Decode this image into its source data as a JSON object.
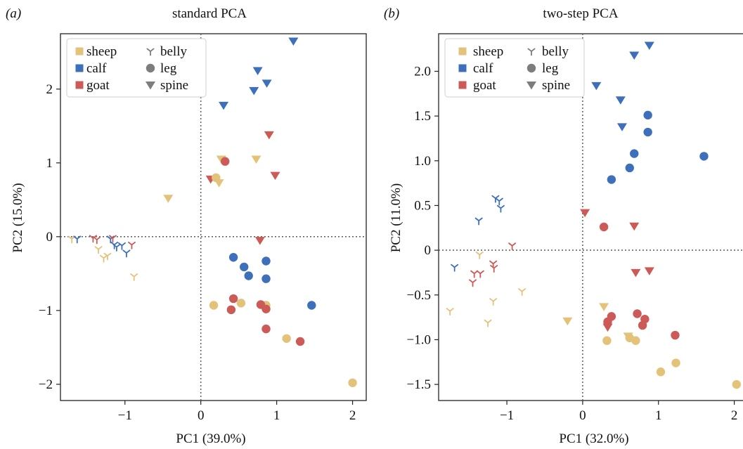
{
  "colors": {
    "sheep": "#e3c27a",
    "calf": "#3d6fba",
    "goat": "#cc5a57",
    "legend_marker": "#7d7d7d"
  },
  "legend": {
    "tissues": [
      "sheep",
      "calf",
      "goat"
    ],
    "parts": [
      "belly",
      "leg",
      "spine"
    ]
  },
  "chart_data": [
    {
      "panel_label": "(a)",
      "type": "scatter",
      "title": "standard PCA",
      "xlabel": "PC1 (39.0%)",
      "ylabel": "PC2 (15.0%)",
      "xlim": [
        -1.85,
        2.18
      ],
      "ylim": [
        -2.22,
        2.75
      ],
      "xticks": [
        -1,
        0,
        1,
        2
      ],
      "yticks": [
        -2,
        -1,
        0,
        1,
        2
      ],
      "xtick_labels": [
        "−1",
        "0",
        "1",
        "2"
      ],
      "ytick_labels": [
        "−2",
        "−1",
        "0",
        "1",
        "2"
      ],
      "reference_lines": [
        0,
        0
      ],
      "legend_position": "top-left",
      "points": [
        {
          "x": 1.22,
          "y": 2.65,
          "species": "calf",
          "part": "spine"
        },
        {
          "x": 0.75,
          "y": 2.25,
          "species": "calf",
          "part": "spine"
        },
        {
          "x": 0.87,
          "y": 2.08,
          "species": "calf",
          "part": "spine"
        },
        {
          "x": 0.7,
          "y": 1.98,
          "species": "calf",
          "part": "spine"
        },
        {
          "x": 0.3,
          "y": 1.78,
          "species": "calf",
          "part": "spine"
        },
        {
          "x": 0.9,
          "y": 1.38,
          "species": "goat",
          "part": "spine"
        },
        {
          "x": 0.27,
          "y": 1.05,
          "species": "sheep",
          "part": "spine"
        },
        {
          "x": 0.73,
          "y": 1.05,
          "species": "sheep",
          "part": "spine"
        },
        {
          "x": 0.98,
          "y": 0.83,
          "species": "goat",
          "part": "spine"
        },
        {
          "x": 0.13,
          "y": 0.78,
          "species": "goat",
          "part": "spine"
        },
        {
          "x": 0.24,
          "y": 0.73,
          "species": "sheep",
          "part": "spine"
        },
        {
          "x": -0.43,
          "y": 0.52,
          "species": "sheep",
          "part": "spine"
        },
        {
          "x": 0.78,
          "y": -0.05,
          "species": "goat",
          "part": "spine"
        },
        {
          "x": 0.32,
          "y": 1.02,
          "species": "goat",
          "part": "leg"
        },
        {
          "x": 0.2,
          "y": 0.8,
          "species": "sheep",
          "part": "leg"
        },
        {
          "x": 0.43,
          "y": -0.28,
          "species": "calf",
          "part": "leg"
        },
        {
          "x": 0.57,
          "y": -0.41,
          "species": "calf",
          "part": "leg"
        },
        {
          "x": 0.63,
          "y": -0.53,
          "species": "calf",
          "part": "leg"
        },
        {
          "x": 0.86,
          "y": -0.33,
          "species": "calf",
          "part": "leg"
        },
        {
          "x": 0.86,
          "y": -0.57,
          "species": "calf",
          "part": "leg"
        },
        {
          "x": 1.46,
          "y": -0.93,
          "species": "calf",
          "part": "leg"
        },
        {
          "x": 0.17,
          "y": -0.93,
          "species": "sheep",
          "part": "leg"
        },
        {
          "x": 0.53,
          "y": -0.9,
          "species": "sheep",
          "part": "leg"
        },
        {
          "x": 0.86,
          "y": -0.93,
          "species": "sheep",
          "part": "leg"
        },
        {
          "x": 0.43,
          "y": -0.84,
          "species": "goat",
          "part": "leg"
        },
        {
          "x": 0.4,
          "y": -0.99,
          "species": "goat",
          "part": "leg"
        },
        {
          "x": 0.79,
          "y": -0.92,
          "species": "goat",
          "part": "leg"
        },
        {
          "x": 0.86,
          "y": -0.98,
          "species": "goat",
          "part": "leg"
        },
        {
          "x": 0.86,
          "y": -1.25,
          "species": "goat",
          "part": "leg"
        },
        {
          "x": 1.13,
          "y": -1.38,
          "species": "sheep",
          "part": "leg"
        },
        {
          "x": 1.31,
          "y": -1.42,
          "species": "goat",
          "part": "leg"
        },
        {
          "x": 2.0,
          "y": -1.98,
          "species": "sheep",
          "part": "leg"
        },
        {
          "x": -1.7,
          "y": -0.03,
          "species": "sheep",
          "part": "belly"
        },
        {
          "x": -1.63,
          "y": -0.03,
          "species": "calf",
          "part": "belly"
        },
        {
          "x": -1.42,
          "y": -0.02,
          "species": "goat",
          "part": "belly"
        },
        {
          "x": -1.37,
          "y": -0.04,
          "species": "goat",
          "part": "belly"
        },
        {
          "x": -1.35,
          "y": -0.17,
          "species": "sheep",
          "part": "belly"
        },
        {
          "x": -1.28,
          "y": -0.29,
          "species": "sheep",
          "part": "belly"
        },
        {
          "x": -1.23,
          "y": -0.26,
          "species": "sheep",
          "part": "belly"
        },
        {
          "x": -1.19,
          "y": -0.03,
          "species": "calf",
          "part": "belly"
        },
        {
          "x": -1.16,
          "y": -0.02,
          "species": "goat",
          "part": "belly"
        },
        {
          "x": -1.14,
          "y": -0.11,
          "species": "calf",
          "part": "belly"
        },
        {
          "x": -1.11,
          "y": -0.14,
          "species": "calf",
          "part": "belly"
        },
        {
          "x": -1.04,
          "y": -0.12,
          "species": "calf",
          "part": "belly"
        },
        {
          "x": -0.98,
          "y": -0.22,
          "species": "calf",
          "part": "belly"
        },
        {
          "x": -0.91,
          "y": -0.11,
          "species": "goat",
          "part": "belly"
        },
        {
          "x": -0.88,
          "y": -0.54,
          "species": "sheep",
          "part": "belly"
        }
      ]
    },
    {
      "panel_label": "(b)",
      "type": "scatter",
      "title": "two-step PCA",
      "xlabel": "PC1 (32.0%)",
      "ylabel": "PC2 (11.0%)",
      "xlim": [
        -1.9,
        2.18
      ],
      "ylim": [
        -1.68,
        2.42
      ],
      "xticks": [
        -1,
        0,
        1,
        2
      ],
      "yticks": [
        -1.5,
        -1.0,
        -0.5,
        0,
        0.5,
        1.0,
        1.5,
        2.0
      ],
      "xtick_labels": [
        "−1",
        "0",
        "1",
        "2"
      ],
      "ytick_labels": [
        "−1.5",
        "−1.0",
        "−0.5",
        "0",
        "0.5",
        "1.0",
        "1.5",
        "2.0"
      ],
      "reference_lines": [
        0,
        0
      ],
      "legend_position": "top-left",
      "points": [
        {
          "x": 0.88,
          "y": 2.29,
          "species": "calf",
          "part": "spine"
        },
        {
          "x": 0.68,
          "y": 2.18,
          "species": "calf",
          "part": "spine"
        },
        {
          "x": 0.18,
          "y": 1.84,
          "species": "calf",
          "part": "spine"
        },
        {
          "x": 0.5,
          "y": 1.68,
          "species": "calf",
          "part": "spine"
        },
        {
          "x": 0.52,
          "y": 1.38,
          "species": "calf",
          "part": "spine"
        },
        {
          "x": 0.03,
          "y": 0.42,
          "species": "goat",
          "part": "spine"
        },
        {
          "x": 0.68,
          "y": 0.27,
          "species": "goat",
          "part": "spine"
        },
        {
          "x": 0.7,
          "y": -0.25,
          "species": "goat",
          "part": "spine"
        },
        {
          "x": 0.88,
          "y": -0.23,
          "species": "goat",
          "part": "spine"
        },
        {
          "x": -0.2,
          "y": -0.79,
          "species": "sheep",
          "part": "spine"
        },
        {
          "x": 0.28,
          "y": -0.63,
          "species": "sheep",
          "part": "spine"
        },
        {
          "x": 0.33,
          "y": -0.86,
          "species": "goat",
          "part": "spine"
        },
        {
          "x": 0.6,
          "y": -0.96,
          "species": "sheep",
          "part": "spine"
        },
        {
          "x": 0.86,
          "y": 1.51,
          "species": "calf",
          "part": "leg"
        },
        {
          "x": 0.86,
          "y": 1.32,
          "species": "calf",
          "part": "leg"
        },
        {
          "x": 0.68,
          "y": 1.08,
          "species": "calf",
          "part": "leg"
        },
        {
          "x": 1.6,
          "y": 1.05,
          "species": "calf",
          "part": "leg"
        },
        {
          "x": 0.62,
          "y": 0.92,
          "species": "calf",
          "part": "leg"
        },
        {
          "x": 0.38,
          "y": 0.79,
          "species": "calf",
          "part": "leg"
        },
        {
          "x": 0.28,
          "y": 0.26,
          "species": "goat",
          "part": "leg"
        },
        {
          "x": 0.38,
          "y": -0.74,
          "species": "goat",
          "part": "leg"
        },
        {
          "x": 0.33,
          "y": -0.8,
          "species": "goat",
          "part": "leg"
        },
        {
          "x": 0.72,
          "y": -0.71,
          "species": "goat",
          "part": "leg"
        },
        {
          "x": 0.82,
          "y": -0.77,
          "species": "goat",
          "part": "leg"
        },
        {
          "x": 0.79,
          "y": -0.84,
          "species": "goat",
          "part": "leg"
        },
        {
          "x": 1.22,
          "y": -0.95,
          "species": "goat",
          "part": "leg"
        },
        {
          "x": 0.32,
          "y": -1.01,
          "species": "sheep",
          "part": "leg"
        },
        {
          "x": 0.62,
          "y": -0.98,
          "species": "sheep",
          "part": "leg"
        },
        {
          "x": 0.7,
          "y": -1.01,
          "species": "sheep",
          "part": "leg"
        },
        {
          "x": 1.23,
          "y": -1.26,
          "species": "sheep",
          "part": "leg"
        },
        {
          "x": 1.03,
          "y": -1.36,
          "species": "sheep",
          "part": "leg"
        },
        {
          "x": 2.03,
          "y": -1.5,
          "species": "sheep",
          "part": "leg"
        },
        {
          "x": -1.15,
          "y": 0.58,
          "species": "calf",
          "part": "belly"
        },
        {
          "x": -1.1,
          "y": 0.55,
          "species": "calf",
          "part": "belly"
        },
        {
          "x": -1.08,
          "y": 0.47,
          "species": "calf",
          "part": "belly"
        },
        {
          "x": -1.37,
          "y": 0.33,
          "species": "calf",
          "part": "belly"
        },
        {
          "x": -0.93,
          "y": 0.05,
          "species": "goat",
          "part": "belly"
        },
        {
          "x": -1.36,
          "y": -0.05,
          "species": "sheep",
          "part": "belly"
        },
        {
          "x": -1.69,
          "y": -0.19,
          "species": "calf",
          "part": "belly"
        },
        {
          "x": -1.18,
          "y": -0.15,
          "species": "goat",
          "part": "belly"
        },
        {
          "x": -1.17,
          "y": -0.2,
          "species": "goat",
          "part": "belly"
        },
        {
          "x": -1.35,
          "y": -0.26,
          "species": "goat",
          "part": "belly"
        },
        {
          "x": -1.43,
          "y": -0.26,
          "species": "goat",
          "part": "belly"
        },
        {
          "x": -1.45,
          "y": -0.36,
          "species": "goat",
          "part": "belly"
        },
        {
          "x": -0.8,
          "y": -0.46,
          "species": "sheep",
          "part": "belly"
        },
        {
          "x": -1.18,
          "y": -0.57,
          "species": "sheep",
          "part": "belly"
        },
        {
          "x": -1.75,
          "y": -0.68,
          "species": "sheep",
          "part": "belly"
        },
        {
          "x": -1.25,
          "y": -0.81,
          "species": "sheep",
          "part": "belly"
        }
      ]
    }
  ]
}
